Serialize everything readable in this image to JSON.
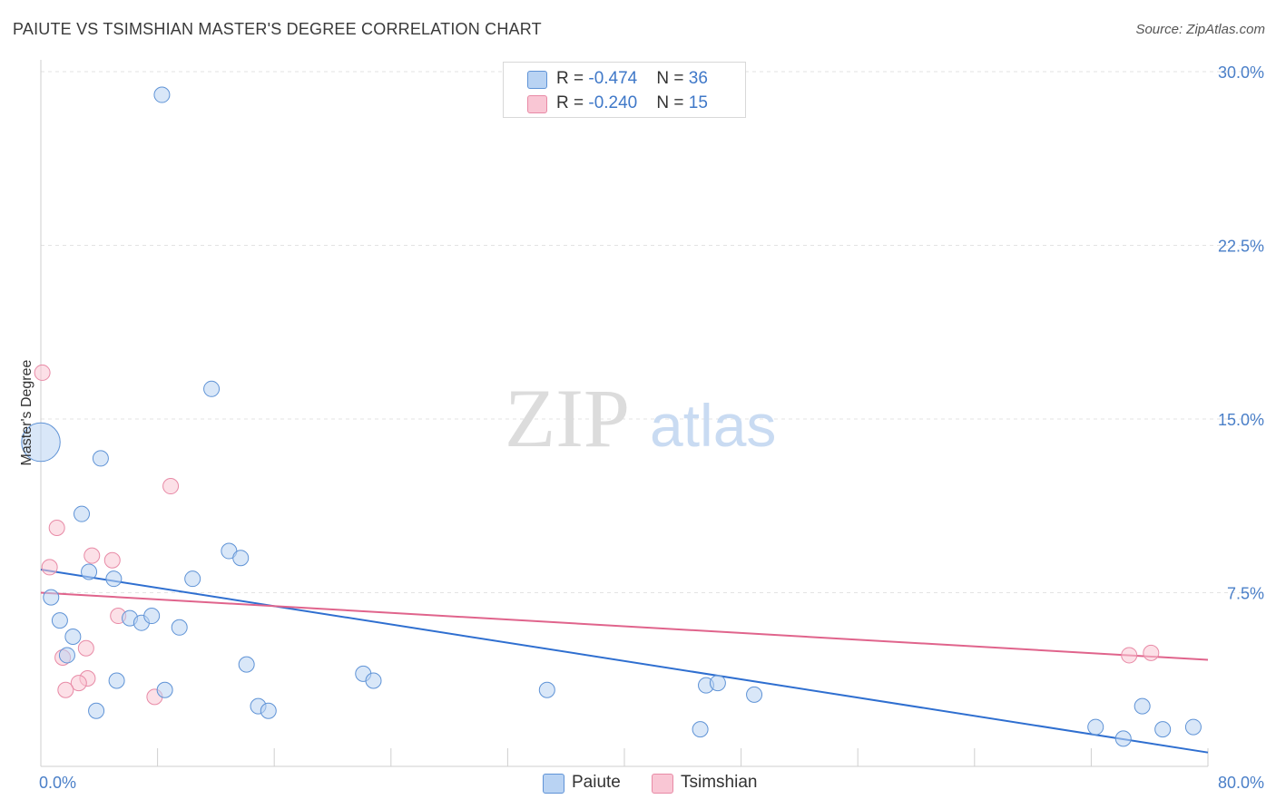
{
  "header": {
    "title": "PAIUTE VS TSIMSHIAN MASTER'S DEGREE CORRELATION CHART",
    "source": "Source: ZipAtlas.com"
  },
  "watermark": {
    "zip": "ZIP",
    "atlas": "atlas"
  },
  "legend": {
    "rows": [
      {
        "r_label": "R = ",
        "r_value": "-0.474",
        "n_label": "N = ",
        "n_value": "36"
      },
      {
        "r_label": "R = ",
        "r_value": "-0.240",
        "n_label": "N = ",
        "n_value": "15"
      }
    ],
    "series_names": [
      "Paiute",
      "Tsimshian"
    ]
  },
  "colors": {
    "paiute_fill": "#b9d3f3",
    "paiute_stroke": "#5f93d6",
    "paiute_line": "#2f6fd0",
    "tsimshian_fill": "#f9c6d4",
    "tsimshian_stroke": "#e88aa6",
    "tsimshian_line": "#e0648c"
  },
  "chart_data": {
    "type": "scatter",
    "title": "PAIUTE VS TSIMSHIAN MASTER'S DEGREE CORRELATION CHART",
    "xlabel": "",
    "ylabel": "Master's Degree",
    "xlim": [
      0,
      80
    ],
    "ylim": [
      0,
      30
    ],
    "x_tick_labels": [
      "0.0%",
      "80.0%"
    ],
    "y_ticks": [
      7.5,
      15.0,
      22.5,
      30.0
    ],
    "y_tick_labels": [
      "7.5%",
      "15.0%",
      "22.5%",
      "30.0%"
    ],
    "grid": true,
    "series": [
      {
        "name": "Paiute",
        "r": -0.474,
        "n": 36,
        "trend": {
          "x": [
            0,
            80
          ],
          "y": [
            8.5,
            0.6
          ]
        },
        "points": [
          {
            "x": 0.0,
            "y": 14.0,
            "size": 2.5
          },
          {
            "x": 8.3,
            "y": 29.0,
            "size": 1
          },
          {
            "x": 11.7,
            "y": 16.3,
            "size": 1
          },
          {
            "x": 4.1,
            "y": 13.3,
            "size": 1
          },
          {
            "x": 2.8,
            "y": 10.9,
            "size": 1
          },
          {
            "x": 12.9,
            "y": 9.3,
            "size": 1
          },
          {
            "x": 13.7,
            "y": 9.0,
            "size": 1
          },
          {
            "x": 3.3,
            "y": 8.4,
            "size": 1
          },
          {
            "x": 5.0,
            "y": 8.1,
            "size": 1
          },
          {
            "x": 10.4,
            "y": 8.1,
            "size": 1
          },
          {
            "x": 0.7,
            "y": 7.3,
            "size": 1
          },
          {
            "x": 1.3,
            "y": 6.3,
            "size": 1
          },
          {
            "x": 6.1,
            "y": 6.4,
            "size": 1
          },
          {
            "x": 6.9,
            "y": 6.2,
            "size": 1
          },
          {
            "x": 7.6,
            "y": 6.5,
            "size": 1
          },
          {
            "x": 9.5,
            "y": 6.0,
            "size": 1
          },
          {
            "x": 2.2,
            "y": 5.6,
            "size": 1
          },
          {
            "x": 1.8,
            "y": 4.8,
            "size": 1
          },
          {
            "x": 14.1,
            "y": 4.4,
            "size": 1
          },
          {
            "x": 22.1,
            "y": 4.0,
            "size": 1
          },
          {
            "x": 22.8,
            "y": 3.7,
            "size": 1
          },
          {
            "x": 5.2,
            "y": 3.7,
            "size": 1
          },
          {
            "x": 8.5,
            "y": 3.3,
            "size": 1
          },
          {
            "x": 34.7,
            "y": 3.3,
            "size": 1
          },
          {
            "x": 45.6,
            "y": 3.5,
            "size": 1
          },
          {
            "x": 46.4,
            "y": 3.6,
            "size": 1
          },
          {
            "x": 48.9,
            "y": 3.1,
            "size": 1
          },
          {
            "x": 14.9,
            "y": 2.6,
            "size": 1
          },
          {
            "x": 15.6,
            "y": 2.4,
            "size": 1
          },
          {
            "x": 3.8,
            "y": 2.4,
            "size": 1
          },
          {
            "x": 75.5,
            "y": 2.6,
            "size": 1
          },
          {
            "x": 45.2,
            "y": 1.6,
            "size": 1
          },
          {
            "x": 72.3,
            "y": 1.7,
            "size": 1
          },
          {
            "x": 74.2,
            "y": 1.2,
            "size": 1
          },
          {
            "x": 76.9,
            "y": 1.6,
            "size": 1
          },
          {
            "x": 79.0,
            "y": 1.7,
            "size": 1
          }
        ]
      },
      {
        "name": "Tsimshian",
        "r": -0.24,
        "n": 15,
        "trend": {
          "x": [
            0,
            80
          ],
          "y": [
            7.5,
            4.6
          ]
        },
        "points": [
          {
            "x": 0.1,
            "y": 17.0,
            "size": 1
          },
          {
            "x": 8.9,
            "y": 12.1,
            "size": 1
          },
          {
            "x": 1.1,
            "y": 10.3,
            "size": 1
          },
          {
            "x": 3.5,
            "y": 9.1,
            "size": 1
          },
          {
            "x": 4.9,
            "y": 8.9,
            "size": 1
          },
          {
            "x": 0.6,
            "y": 8.6,
            "size": 1
          },
          {
            "x": 5.3,
            "y": 6.5,
            "size": 1
          },
          {
            "x": 3.1,
            "y": 5.1,
            "size": 1
          },
          {
            "x": 1.5,
            "y": 4.7,
            "size": 1
          },
          {
            "x": 3.2,
            "y": 3.8,
            "size": 1
          },
          {
            "x": 2.6,
            "y": 3.6,
            "size": 1
          },
          {
            "x": 1.7,
            "y": 3.3,
            "size": 1
          },
          {
            "x": 7.8,
            "y": 3.0,
            "size": 1
          },
          {
            "x": 74.6,
            "y": 4.8,
            "size": 1
          },
          {
            "x": 76.1,
            "y": 4.9,
            "size": 1
          }
        ]
      }
    ]
  }
}
